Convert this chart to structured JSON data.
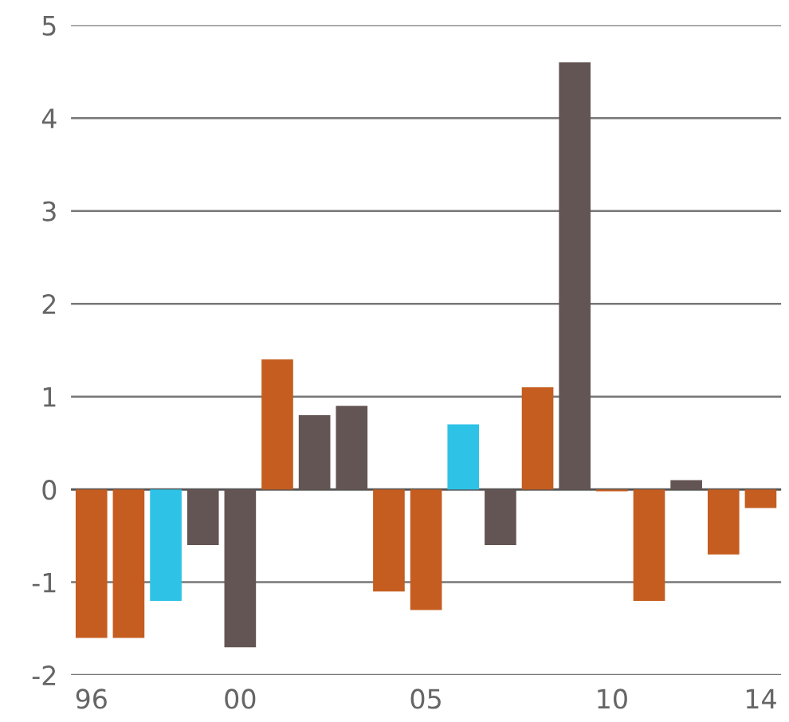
{
  "chart_data": {
    "type": "bar",
    "categories": [
      "96",
      null,
      null,
      null,
      "00",
      null,
      null,
      null,
      null,
      "05",
      null,
      null,
      null,
      null,
      "10",
      null,
      null,
      null,
      "14"
    ],
    "values": [
      -1.6,
      -1.6,
      -1.2,
      -0.6,
      -1.7,
      1.4,
      0.8,
      0.9,
      -1.1,
      -1.3,
      0.7,
      -0.6,
      1.1,
      4.6,
      -0.02,
      -1.2,
      0.1,
      -0.7,
      -0.2
    ],
    "colors": [
      "#c45d1f",
      "#c45d1f",
      "#2ec2e6",
      "#635553",
      "#635553",
      "#c45d1f",
      "#635553",
      "#635553",
      "#c45d1f",
      "#c45d1f",
      "#2ec2e6",
      "#635553",
      "#c45d1f",
      "#635553",
      "#c45d1f",
      "#c45d1f",
      "#635553",
      "#c45d1f",
      "#c45d1f"
    ],
    "ylim": [
      -2,
      5
    ],
    "yticks": [
      {
        "value": -2,
        "label": "-2"
      },
      {
        "value": -1,
        "label": "-1"
      },
      0,
      1,
      2,
      3,
      4,
      5
    ],
    "grid": "y"
  }
}
